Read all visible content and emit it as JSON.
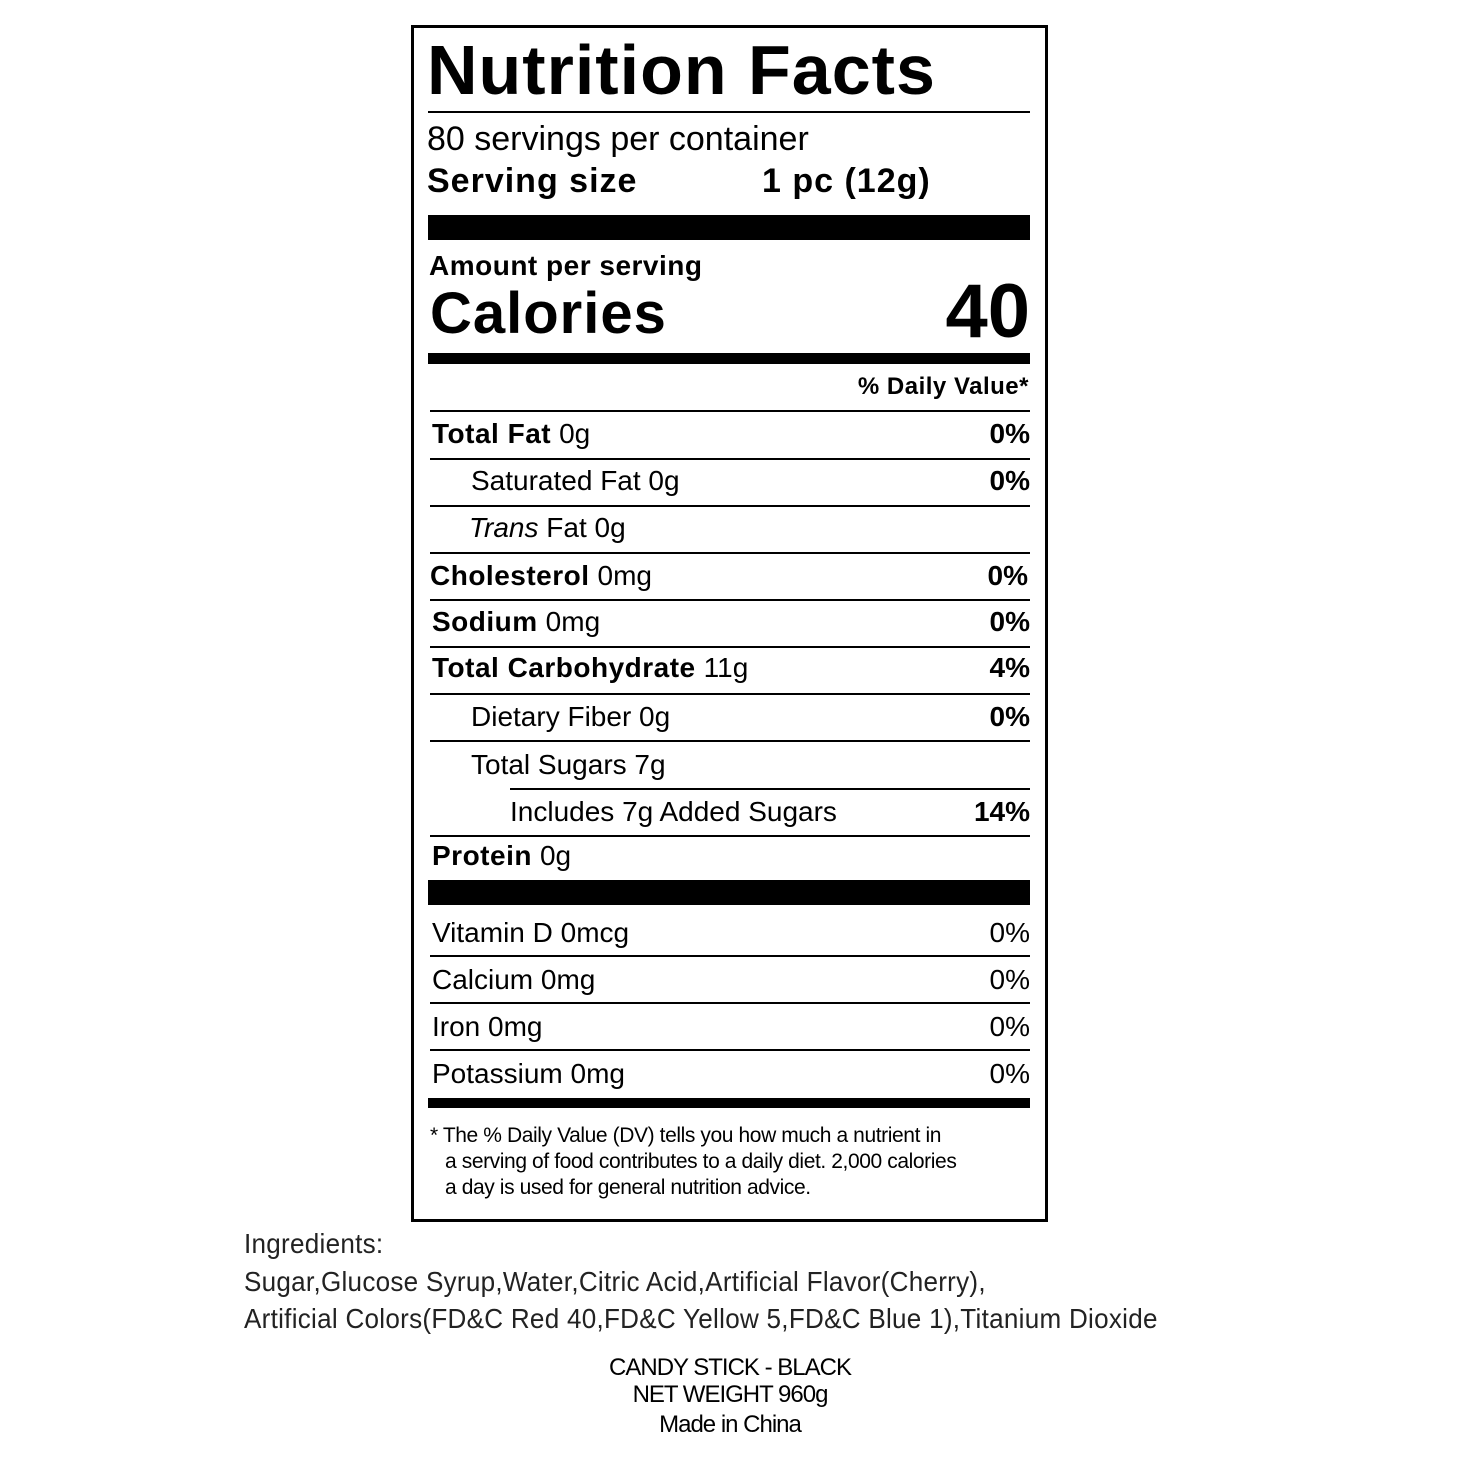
{
  "label": {
    "title": "Nutrition Facts",
    "servings": "80 servings per container",
    "serving_size_label": "Serving size",
    "serving_size_value": "1 pc (12g)",
    "amount_per_serving": "Amount per serving",
    "calories_label": "Calories",
    "calories_value": "40",
    "daily_value_header": "% Daily Value*",
    "nutrients": [
      {
        "name": "Total Fat",
        "amount": "0g",
        "dv": "0%"
      },
      {
        "name": "Saturated Fat 0g",
        "amount": "",
        "dv": "0%"
      },
      {
        "name_italic": "Trans",
        "name": "Fat 0g",
        "amount": "",
        "dv": ""
      },
      {
        "name": "Cholesterol",
        "amount": "0mg",
        "dv": "0%"
      },
      {
        "name": "Sodium",
        "amount": "0mg",
        "dv": "0%"
      },
      {
        "name": "Total Carbohydrate",
        "amount": "11g",
        "dv": "4%"
      },
      {
        "name": "Dietary Fiber 0g",
        "amount": "",
        "dv": "0%"
      },
      {
        "name": "Total Sugars 7g",
        "amount": "",
        "dv": ""
      },
      {
        "name": "Includes 7g Added Sugars",
        "amount": "",
        "dv": "14%"
      },
      {
        "name": "Protein",
        "amount": "0g",
        "dv": ""
      }
    ],
    "vitamins": [
      {
        "name": "Vitamin D 0mcg",
        "dv": "0%"
      },
      {
        "name": "Calcium 0mg",
        "dv": "0%"
      },
      {
        "name": "Iron 0mg",
        "dv": "0%"
      },
      {
        "name": "Potassium 0mg",
        "dv": "0%"
      }
    ],
    "footnote": [
      "* The % Daily Value (DV) tells you how much a nutrient in",
      "a serving of food contributes to a daily diet. 2,000 calories",
      "a day is used for general nutrition advice."
    ]
  },
  "ingredients": {
    "heading": "Ingredients:",
    "lines": [
      "Sugar,Glucose Syrup,Water,Citric Acid,Artificial Flavor(Cherry),",
      "Artificial Colors(FD&C Red 40,FD&C Yellow 5,FD&C Blue 1),Titanium Dioxide"
    ]
  },
  "product": {
    "name": "CANDY STICK - BLACK",
    "net_weight": "NET WEIGHT 960g",
    "origin": "Made in China"
  }
}
